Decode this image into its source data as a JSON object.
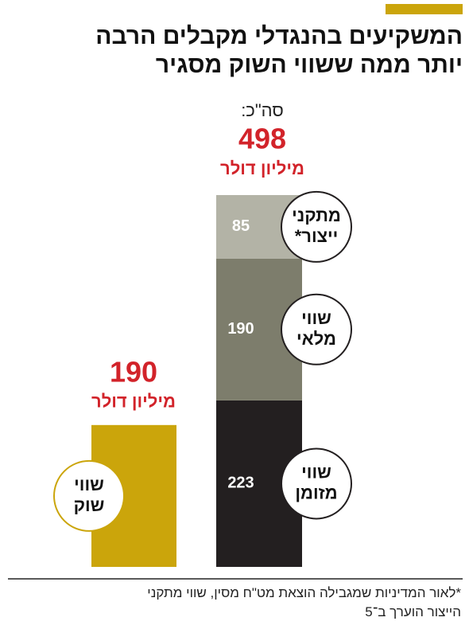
{
  "chart_data": {
    "type": "stacked-bar",
    "title_lines": [
      "המשקיעים בהנגדלי מקבלים הרבה",
      "יותר ממה ששווי השוק מסגיר"
    ],
    "unit": "מיליון דולר",
    "total_caption": "סה\"כ:",
    "total": 498,
    "stack": [
      {
        "name": "שווי מזומן",
        "color": "#231f20",
        "value": 223
      },
      {
        "name": "שווי מלאי",
        "color": "#7d7d6c",
        "value": 190
      },
      {
        "name": "מתקני ייצור*",
        "color": "#b3b3a6",
        "value": 85
      }
    ],
    "market": {
      "name": "שווי שוק",
      "color": "#cba50b",
      "value": 190
    },
    "label_color": "#d2232a",
    "footnote_lines": [
      "*לאור המדיניות שמגבילה הוצאת מט\"ח מסין, שווי מתקני",
      "הייצור הוערך ב־5"
    ]
  }
}
